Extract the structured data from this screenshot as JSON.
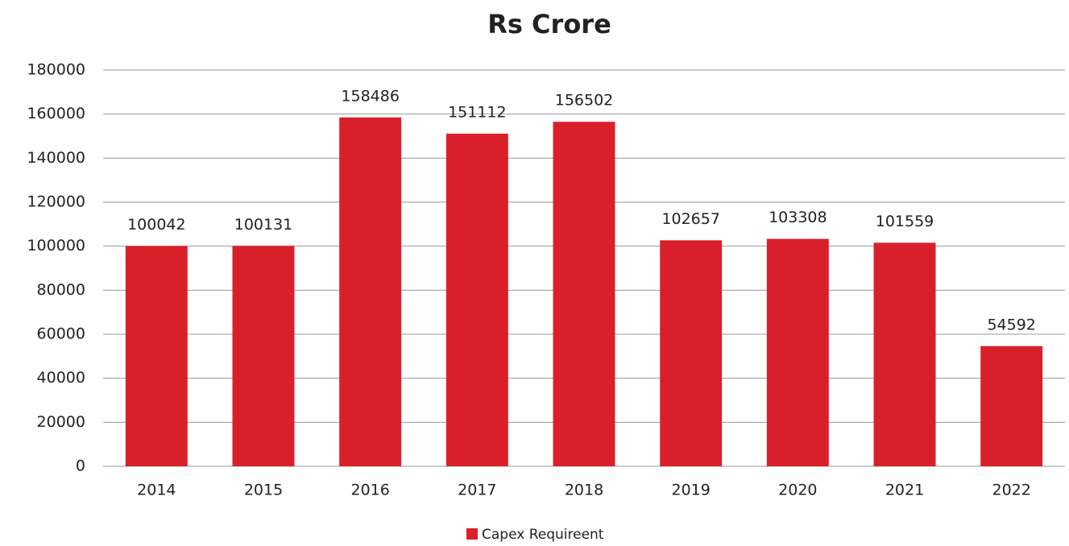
{
  "chart_data": {
    "type": "bar",
    "title": "Rs Crore",
    "categories": [
      "2014",
      "2015",
      "2016",
      "2017",
      "2018",
      "2019",
      "2020",
      "2021",
      "2022"
    ],
    "series": [
      {
        "name": "Capex Requireent",
        "color": "#d9202a",
        "values": [
          100042,
          100131,
          158486,
          151112,
          156502,
          102657,
          103308,
          101559,
          54592
        ]
      }
    ],
    "ylim": [
      0,
      180000
    ],
    "yticks": [
      0,
      20000,
      40000,
      60000,
      80000,
      100000,
      120000,
      140000,
      160000,
      180000
    ],
    "grid": true,
    "legend": "bottom"
  }
}
